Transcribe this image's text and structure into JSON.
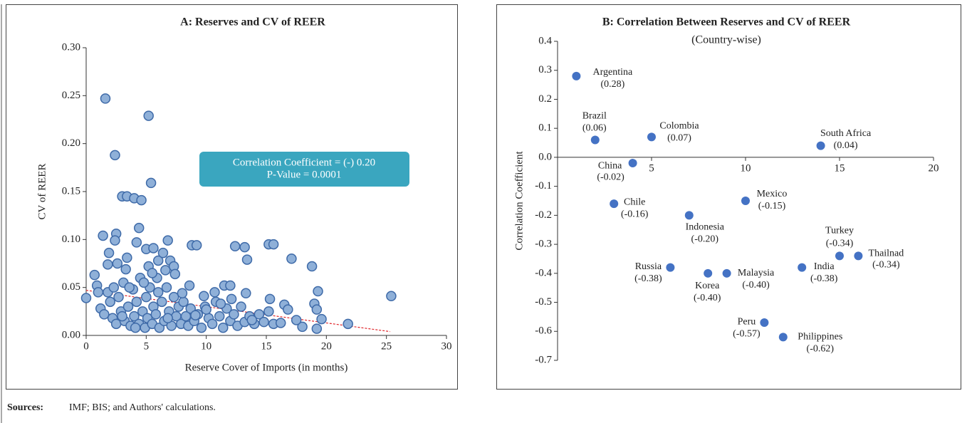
{
  "chart_data": [
    {
      "type": "scatter",
      "title": "A: Reserves and CV of REER",
      "x_label": "Reserve Cover of Imports (in months)",
      "y_label": "CV of REER",
      "annotation": [
        "Correlation Coefficient = (-) 0.20",
        "P-Value = 0.0001"
      ],
      "color": "#8fb0d8",
      "edge_color": "#3e6aa8",
      "xlim": [
        0,
        30
      ],
      "xticks": [
        0,
        5,
        10,
        15,
        20,
        25,
        30
      ],
      "ylim": [
        0,
        0.3
      ],
      "yticks": [
        {
          "value": 0,
          "label": "0.00"
        },
        {
          "value": 0.05,
          "label": "0.05"
        },
        {
          "value": 0.1,
          "label": "0.10"
        },
        {
          "value": 0.15,
          "label": "0.15"
        },
        {
          "value": 0.2,
          "label": "0.20"
        },
        {
          "value": 0.25,
          "label": "0.25"
        },
        {
          "value": 0.3,
          "label": "0.30"
        }
      ],
      "x": [
        1.6,
        5.2,
        2.4,
        5.4,
        3,
        3.4,
        4,
        4.6,
        4.4,
        1.4,
        2.5,
        6.8,
        2.4,
        4.2,
        8.8,
        9.2,
        12.4,
        13.2,
        15.2,
        15.6,
        13.4,
        17.1,
        18.8,
        19.3,
        25.4,
        21.8,
        19.6,
        18,
        19.2,
        0,
        0.7,
        0.9,
        1.9,
        1.8,
        2.6,
        3.4,
        3.3,
        5,
        5.6,
        6,
        6.4,
        7,
        7.3,
        7.4,
        8.6,
        9.8,
        11.5,
        12,
        13.3,
        15.3,
        16.5,
        16.8,
        19,
        19.2,
        17.5,
        1.2,
        1.5,
        1.8,
        2.0,
        2.2,
        2.5,
        2.7,
        2.9,
        3.1,
        3.2,
        3.5,
        3.7,
        3.9,
        4.0,
        4.2,
        4.4,
        4.5,
        4.7,
        4.9,
        5.0,
        5.1,
        5.3,
        5.5,
        5.6,
        5.8,
        6.0,
        6.1,
        6.3,
        6.5,
        6.7,
        6.9,
        7.1,
        7.3,
        7.5,
        7.7,
        7.9,
        8.1,
        8.3,
        8.5,
        8.7,
        9.0,
        9.3,
        9.6,
        9.9,
        10.2,
        10.5,
        10.8,
        11.1,
        11.4,
        11.7,
        12.0,
        12.3,
        12.6,
        12.9,
        13.2,
        13.6,
        14.0,
        14.4,
        14.8,
        15.2,
        15.6,
        16.2,
        4.8,
        5.9,
        6.6,
        3.6,
        2.3,
        1.0,
        10.7,
        11.2,
        5.2,
        5.5,
        3.0,
        4.1,
        6.8,
        8.0,
        9.1,
        10.0,
        12.1,
        13.8
      ],
      "values": [
        0.247,
        0.229,
        0.188,
        0.159,
        0.145,
        0.145,
        0.143,
        0.141,
        0.112,
        0.104,
        0.106,
        0.099,
        0.099,
        0.097,
        0.094,
        0.094,
        0.093,
        0.092,
        0.095,
        0.095,
        0.079,
        0.08,
        0.072,
        0.046,
        0.041,
        0.012,
        0.017,
        0.009,
        0.007,
        0.039,
        0.063,
        0.052,
        0.086,
        0.074,
        0.075,
        0.081,
        0.069,
        0.09,
        0.091,
        0.078,
        0.086,
        0.078,
        0.072,
        0.064,
        0.052,
        0.041,
        0.052,
        0.052,
        0.044,
        0.038,
        0.032,
        0.027,
        0.033,
        0.027,
        0.016,
        0.028,
        0.022,
        0.045,
        0.035,
        0.018,
        0.012,
        0.04,
        0.025,
        0.055,
        0.015,
        0.03,
        0.01,
        0.048,
        0.02,
        0.035,
        0.012,
        0.06,
        0.025,
        0.008,
        0.04,
        0.018,
        0.05,
        0.012,
        0.03,
        0.022,
        0.045,
        0.008,
        0.035,
        0.015,
        0.05,
        0.025,
        0.01,
        0.04,
        0.02,
        0.03,
        0.012,
        0.035,
        0.02,
        0.01,
        0.028,
        0.015,
        0.022,
        0.008,
        0.03,
        0.018,
        0.012,
        0.035,
        0.02,
        0.008,
        0.028,
        0.015,
        0.022,
        0.01,
        0.03,
        0.014,
        0.02,
        0.012,
        0.022,
        0.014,
        0.025,
        0.012,
        0.013,
        0.055,
        0.06,
        0.068,
        0.05,
        0.05,
        0.045,
        0.045,
        0.033,
        0.072,
        0.065,
        0.02,
        0.008,
        0.018,
        0.044,
        0.021,
        0.027,
        0.038,
        0.016
      ],
      "trend": {
        "x": [
          0,
          25.3
        ],
        "values": [
          0.047,
          0.004
        ],
        "color": "#e0262b"
      }
    },
    {
      "type": "scatter",
      "title": "B: Correlation Between Reserves and CV of REER",
      "subtitle": "(Country-wise)",
      "y_label": "Correlation Coefficient",
      "color": "#4472c4",
      "xlim": [
        0,
        20
      ],
      "xticks": [
        5,
        10,
        15,
        20
      ],
      "ylim": [
        -0.7,
        0.4
      ],
      "yticks": [
        0.4,
        0.3,
        0.2,
        0.1,
        {
          "value": 0,
          "label": "0.0"
        },
        -0.1,
        -0.2,
        -0.3,
        -0.4,
        -0.5,
        -0.6,
        -0.7
      ],
      "x": [
        1,
        2,
        4,
        5,
        14,
        3,
        10,
        7,
        15,
        16,
        6,
        8,
        9,
        13,
        11,
        12
      ],
      "values": [
        0.28,
        0.06,
        -0.02,
        0.07,
        0.04,
        -0.16,
        -0.15,
        -0.2,
        -0.34,
        -0.34,
        -0.38,
        -0.4,
        -0.4,
        -0.38,
        -0.57,
        -0.62
      ],
      "point_labels": [
        "Argentina",
        "Brazil",
        "China",
        "Colombia",
        "South Africa",
        "Chile",
        "Mexico",
        "Indonesia",
        "Turkey",
        "Thailnad",
        "Russia",
        "Korea",
        "Malaysia",
        "India",
        "Peru",
        "Philippines"
      ],
      "value_labels": [
        "(0.28)",
        "(0.06)",
        "(-0.02)",
        "(0.07)",
        "(0.04)",
        "(-0.16)",
        "(-0.15)",
        "(-0.20)",
        "(-0.34)",
        "(-0.34)",
        "(-0.38)",
        "(-0.40)",
        "(-0.40)",
        "(-0.38)",
        "(-0.57)",
        "(-0.62)"
      ]
    }
  ],
  "sources": {
    "label": "Sources:",
    "text": "IMF; BIS; and Authors' calculations."
  }
}
